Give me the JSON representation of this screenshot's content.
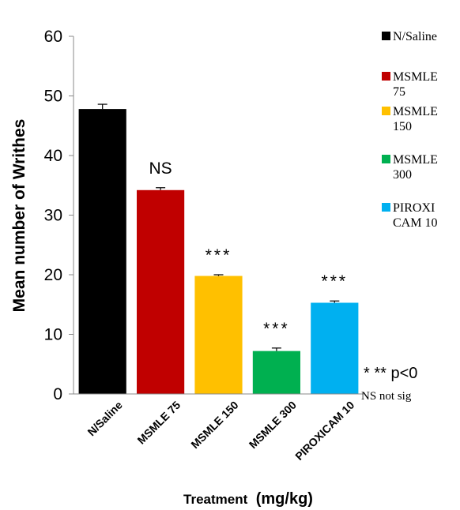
{
  "chart_data": {
    "type": "bar",
    "title": "",
    "xlabel": "Treatment",
    "xlabel_unit": "(mg/kg)",
    "ylabel": "Mean number of Writhes",
    "ylim": [
      0,
      60
    ],
    "yticks": [
      "0",
      "10",
      "20",
      "30",
      "40",
      "50",
      "60"
    ],
    "grid": false,
    "categories": [
      "N/Saline",
      "MSMLE 75",
      "MSMLE 150",
      "MSMLE 300",
      "PIROXICAM 10"
    ],
    "values": [
      47.8,
      34.2,
      19.8,
      7.2,
      15.3
    ],
    "errors": [
      0.8,
      0.4,
      0.2,
      0.5,
      0.3
    ],
    "colors": [
      "#000000",
      "#c00000",
      "#ffc000",
      "#00b050",
      "#00b0f0"
    ],
    "annotations": [
      "",
      "NS",
      "***",
      "***",
      "***"
    ],
    "legend": {
      "placement": "right",
      "entries": [
        {
          "line1": "N/Saline",
          "line2": ""
        },
        {
          "line1": "MSMLE",
          "line2": "75"
        },
        {
          "line1": "MSMLE",
          "line2": "150"
        },
        {
          "line1": "MSMLE",
          "line2": "300"
        },
        {
          "line1": "PIROXI",
          "line2": "CAM 10"
        }
      ]
    },
    "footnote_1": "* ** p<0",
    "footnote_2": "NS not sig"
  }
}
